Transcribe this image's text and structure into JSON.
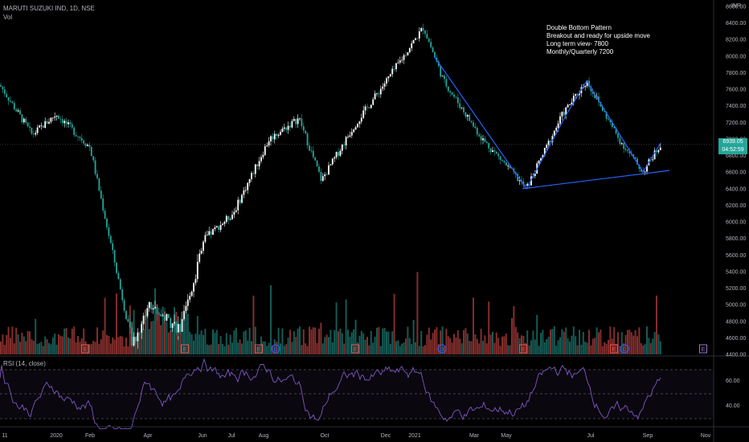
{
  "symbol": {
    "title": "MARUTI SUZUKI IND, 1D, NSE",
    "volume_label": "Vol"
  },
  "annotation": {
    "lines": [
      "Double Bottom Pattern",
      "Breakout and ready for upside move",
      "Long term view- 7800",
      "Monthly/Quarterly 7200"
    ]
  },
  "price_axis": {
    "unit": "INR",
    "ticks": [
      "8600.00",
      "8400.00",
      "8200.00",
      "8000.00",
      "7800.00",
      "7600.00",
      "7400.00",
      "7200.00",
      "7000.00",
      "6800.00",
      "6600.00",
      "6400.00",
      "6200.00",
      "6000.00",
      "5800.00",
      "5600.00",
      "5400.00",
      "5200.00",
      "5000.00",
      "4800.00",
      "4600.00",
      "4400.00"
    ],
    "current_price": "6939.05",
    "countdown": "04:52:59"
  },
  "rsi": {
    "label": "RSI (14, close)",
    "ticks": [
      "60.00",
      "40.00"
    ]
  },
  "time_axis": [
    "11",
    "2020",
    "Feb",
    "Apr",
    "Jun",
    "Jul",
    "Aug",
    "Oct",
    "Dec",
    "2021",
    "Mar",
    "May",
    "Jul",
    "Sep",
    "Nov"
  ],
  "event_markers": [
    "E",
    "E",
    "E",
    "D",
    "E",
    "D",
    "E",
    "E",
    "D",
    "E"
  ],
  "colors": {
    "up": "#26a69a",
    "down": "#ef5350",
    "rsi": "#7e57c2",
    "pattern": "#2962ff",
    "event": "#ef5350",
    "dividend": "#2962ff"
  },
  "chart_data": {
    "type": "candlestick",
    "symbol": "MARUTI SUZUKI IND",
    "interval": "1D",
    "exchange": "NSE",
    "ylim": [
      4400,
      8600
    ],
    "price_path": [
      {
        "x": "2019-11",
        "y": 7650
      },
      {
        "x": "2019-12",
        "y": 7050
      },
      {
        "x": "2020",
        "y": 7300
      },
      {
        "x": "2020-02",
        "y": 6900
      },
      {
        "x": "2020-03",
        "y": 4500
      },
      {
        "x": "2020-04",
        "y": 5000
      },
      {
        "x": "2020-05",
        "y": 4700
      },
      {
        "x": "2020-06",
        "y": 5800
      },
      {
        "x": "2020-07",
        "y": 6100
      },
      {
        "x": "2020-08",
        "y": 7000
      },
      {
        "x": "2020-09",
        "y": 7250
      },
      {
        "x": "2020-10",
        "y": 6500
      },
      {
        "x": "2020-11",
        "y": 7150
      },
      {
        "x": "2020-12",
        "y": 7800
      },
      {
        "x": "2021",
        "y": 8350
      },
      {
        "x": "2021-02",
        "y": 7700
      },
      {
        "x": "2021-03",
        "y": 7000
      },
      {
        "x": "2021-04",
        "y": 6700
      },
      {
        "x": "2021-05",
        "y": 6400
      },
      {
        "x": "2021-06",
        "y": 7300
      },
      {
        "x": "2021-07",
        "y": 7700
      },
      {
        "x": "2021-08",
        "y": 7000
      },
      {
        "x": "2021-09",
        "y": 6600
      },
      {
        "x": "2021-09",
        "y": 6939
      }
    ],
    "pattern_points": [
      {
        "x": "2021-02",
        "y": 8000
      },
      {
        "x": "2021-05",
        "y": 6400
      },
      {
        "x": "2021-06",
        "y": 7300
      },
      {
        "x": "2021-07",
        "y": 7700
      },
      {
        "x": "2021-09",
        "y": 6600
      },
      {
        "x": "2021-09",
        "y": 6950
      }
    ],
    "support_line": [
      {
        "x": "2021-05",
        "y": 6400
      },
      {
        "x": "2021-09",
        "y": 6620
      }
    ],
    "rsi": {
      "label": "RSI (14, close)",
      "ticks": [
        60,
        40
      ]
    }
  }
}
